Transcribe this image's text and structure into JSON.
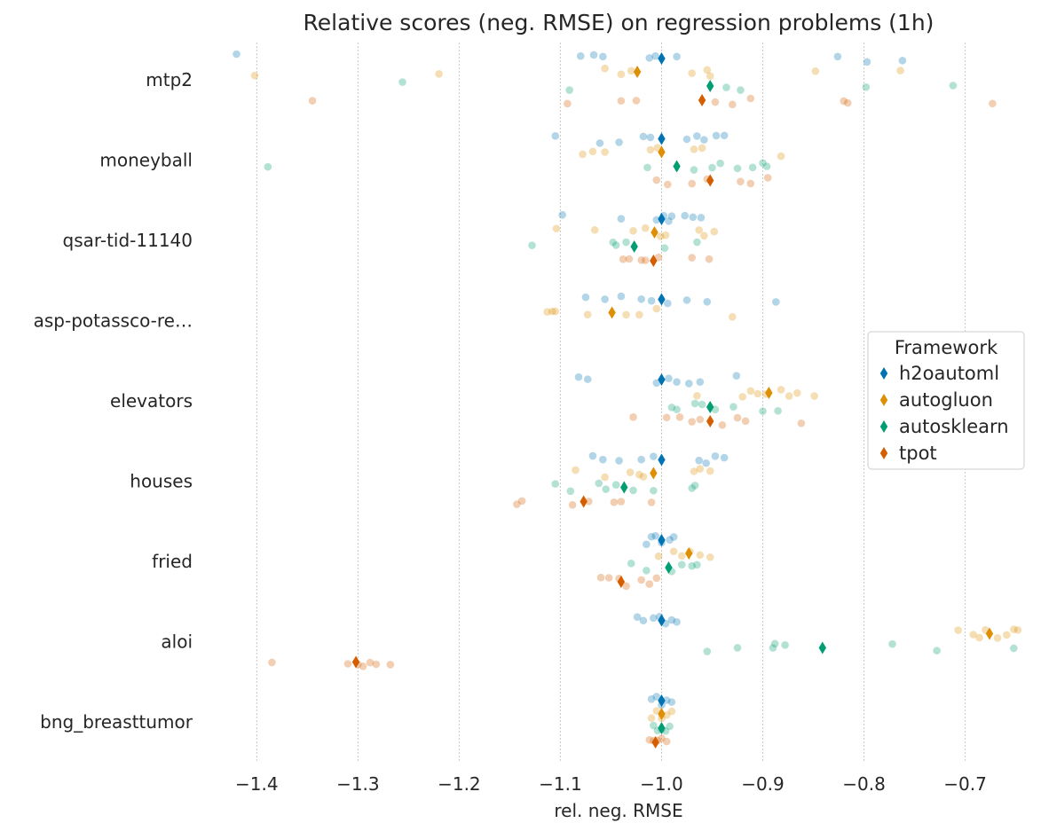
{
  "chart_data": {
    "type": "scatter",
    "title": "Relative scores (neg. RMSE) on  regression problems (1h)",
    "xlabel": "rel. neg. RMSE",
    "ylabel": "",
    "xlim": [
      -1.445,
      -0.64
    ],
    "xticks": [
      -1.4,
      -1.3,
      -1.2,
      -1.1,
      -1.0,
      -0.9,
      -0.8,
      -0.7
    ],
    "xtick_labels": [
      "−1.4",
      "−1.3",
      "−1.2",
      "−1.1",
      "−1.0",
      "−0.9",
      "−0.8",
      "−0.7"
    ],
    "grid": "x",
    "categories": [
      "mtp2",
      "moneyball",
      "qsar-tid-11140",
      "asp-potassco-re…",
      "elevators",
      "houses",
      "fried",
      "aloi",
      "bng_breasttumor"
    ],
    "legend": {
      "title": "Framework",
      "position": "right",
      "entries": [
        "h2oautoml",
        "autogluon",
        "autosklearn",
        "tpot"
      ]
    },
    "series": [
      {
        "name": "h2oautoml",
        "color": "#0173b2",
        "means": [
          -1.0,
          -1.0,
          -1.0,
          -1.0,
          -1.0,
          -1.0,
          -1.0,
          -1.0,
          -1.0
        ],
        "points": [
          [
            -1.42,
            -1.08,
            -1.067,
            -1.058,
            -1.012,
            -1.006,
            -0.985,
            -0.826,
            -0.797,
            -0.762
          ],
          [
            -1.105,
            -1.061,
            -1.042,
            -1.018,
            -1.011,
            -0.975,
            -0.965,
            -0.958,
            -0.946,
            -0.938
          ],
          [
            -1.098,
            -1.04,
            -1.005,
            -0.998,
            -0.993,
            -0.99,
            -0.977,
            -0.969,
            -0.961
          ],
          [
            -1.075,
            -1.056,
            -1.04,
            -1.02,
            -1.01,
            -0.994,
            -0.975,
            -0.955,
            -0.887
          ],
          [
            -1.082,
            -1.073,
            -1.005,
            -0.993,
            -0.985,
            -0.973,
            -0.962,
            -0.926
          ],
          [
            -1.068,
            -1.058,
            -1.042,
            -1.02,
            -1.008,
            -0.963,
            -0.956,
            -0.947,
            -0.938
          ],
          [
            -1.015,
            -1.01,
            -1.006,
            -1.0,
            -0.992,
            -0.988
          ],
          [
            -1.024,
            -1.018,
            -1.008,
            -1.002,
            -0.996,
            -0.99,
            -0.985
          ],
          [
            -1.01,
            -1.005,
            -1.0,
            -0.995,
            -0.99
          ]
        ]
      },
      {
        "name": "autogluon",
        "color": "#de8f05",
        "means": [
          -1.024,
          -1.0,
          -1.007,
          -1.049,
          -0.894,
          -1.008,
          -0.973,
          -0.676,
          -1.0
        ],
        "points": [
          [
            -1.402,
            -1.22,
            -1.056,
            -1.04,
            -1.03,
            -0.97,
            -0.955,
            -0.952,
            -0.848,
            -0.764
          ],
          [
            -1.078,
            -1.068,
            -1.056,
            -1.011,
            -1.004,
            -0.968,
            -0.96,
            -0.882
          ],
          [
            -1.104,
            -1.066,
            -1.028,
            -1.016,
            -1.001,
            -0.996,
            -0.963,
            -0.958,
            -0.948
          ],
          [
            -1.113,
            -1.108,
            -1.105,
            -1.073,
            -1.035,
            -1.022,
            -1.005,
            -0.93
          ],
          [
            -0.965,
            -0.92,
            -0.912,
            -0.905,
            -0.897,
            -0.882,
            -0.874,
            -0.866,
            -0.849
          ],
          [
            -1.085,
            -1.056,
            -1.031,
            -1.022,
            -1.018,
            -0.968,
            -0.962,
            -0.952
          ],
          [
            -1.003,
            -0.988,
            -0.98,
            -0.972,
            -0.962,
            -0.952
          ],
          [
            -0.707,
            -0.692,
            -0.686,
            -0.68,
            -0.668,
            -0.659,
            -0.652,
            -0.648
          ],
          [
            -1.01,
            -1.005,
            -1.0,
            -0.995,
            -0.99
          ]
        ]
      },
      {
        "name": "autosklearn",
        "color": "#029e73",
        "means": [
          -0.952,
          -0.985,
          -1.027,
          null,
          -0.952,
          -1.037,
          -0.993,
          -0.841,
          -1.0
        ],
        "points": [
          [
            -1.256,
            -1.091,
            -0.936,
            -0.922,
            -0.798,
            -0.712
          ],
          [
            -1.389,
            -1.014,
            -0.968,
            -0.95,
            -0.942,
            -0.925,
            -0.91,
            -0.9,
            -0.896
          ],
          [
            -1.128,
            -1.048,
            -1.045,
            -1.035,
            -0.997,
            -0.965
          ],
          [],
          [
            -0.99,
            -0.985,
            -0.967,
            -0.96,
            -0.947,
            -0.929,
            -0.9,
            -0.885
          ],
          [
            -1.105,
            -1.09,
            -1.062,
            -1.055,
            -1.045,
            -1.028,
            -1.008,
            -0.97,
            -0.967
          ],
          [
            -1.03,
            -1.015,
            -0.99,
            -0.98,
            -0.97,
            -0.965
          ],
          [
            -0.955,
            -0.925,
            -0.89,
            -0.888,
            -0.878,
            -0.772,
            -0.728,
            -0.652
          ],
          [
            -1.008,
            -1.004,
            -1.0,
            -0.996,
            -0.992
          ]
        ]
      },
      {
        "name": "tpot",
        "color": "#d55e00",
        "means": [
          -0.96,
          -0.952,
          -1.008,
          null,
          -0.952,
          -1.077,
          -1.04,
          -1.302,
          -1.006
        ],
        "points": [
          [
            -1.345,
            -1.093,
            -1.04,
            -1.025,
            -0.947,
            -0.93,
            -0.912,
            -0.82,
            -0.816,
            -0.673
          ],
          [
            -1.005,
            -0.994,
            -0.97,
            -0.955,
            -0.922,
            -0.912,
            -0.895
          ],
          [
            -1.038,
            -1.032,
            -1.02,
            -1.016,
            -1.003,
            -0.97,
            -0.953
          ],
          [],
          [
            -1.028,
            -0.995,
            -0.982,
            -0.97,
            -0.962,
            -0.94,
            -0.925,
            -0.917,
            -0.862
          ],
          [
            -1.143,
            -1.138,
            -1.088,
            -1.072,
            -1.047,
            -1.04,
            -1.01
          ],
          [
            -1.06,
            -1.052,
            -1.042,
            -1.035,
            -1.02,
            -1.012,
            -1.005
          ],
          [
            -1.385,
            -1.31,
            -1.3,
            -1.295,
            -1.288,
            -1.282,
            -1.268
          ],
          [
            -1.012,
            -1.008,
            -1.004,
            -1.0,
            -0.995
          ]
        ]
      }
    ]
  }
}
